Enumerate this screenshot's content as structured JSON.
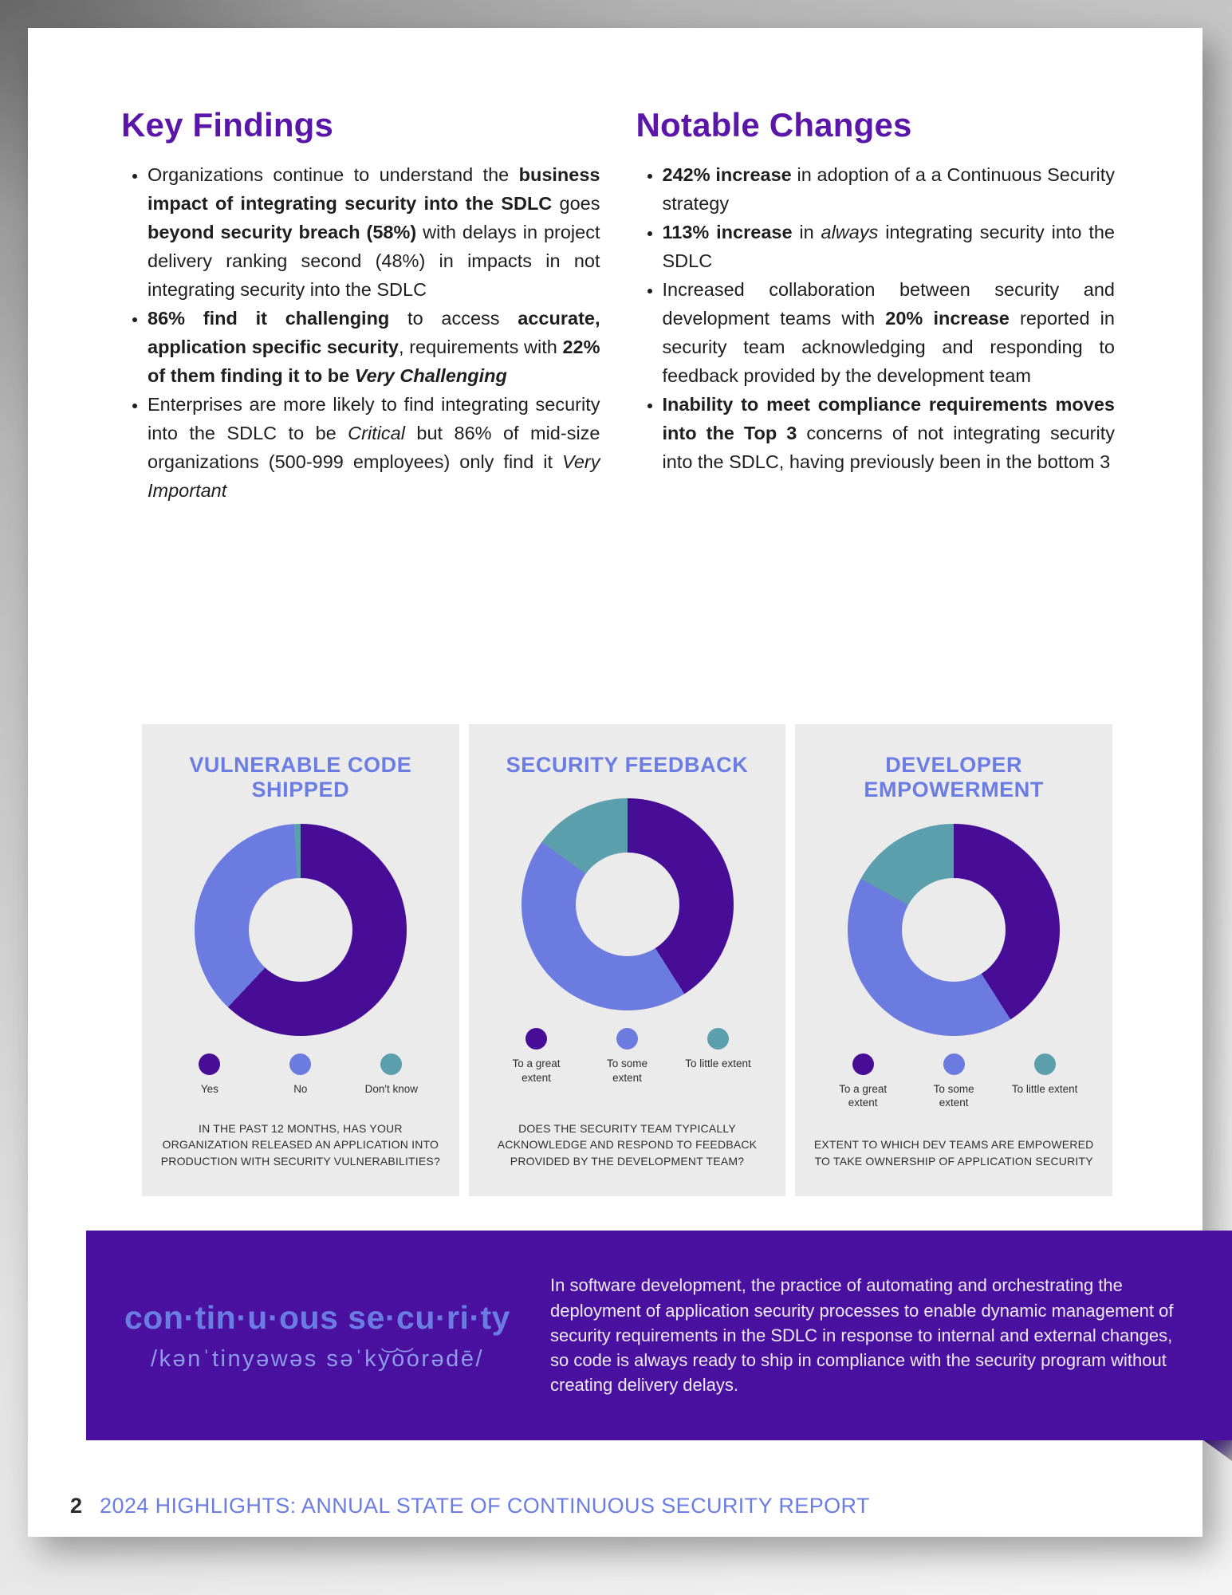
{
  "theme": {
    "heading_purple": "#5A16A8",
    "periwinkle": "#6B7DE2",
    "deep_purple": "#470D97",
    "teal": "#5B9FAC",
    "banner_purple": "#4A11A0",
    "card_bg": "#ECEBEC",
    "body_text": "#1E1E1E"
  },
  "key_findings": {
    "title": "Key Findings",
    "bullets": [
      [
        {
          "t": "Organizations continue to understand the "
        },
        {
          "t": "business impact of integrating security into the SDLC",
          "b": 1
        },
        {
          "t": " goes "
        },
        {
          "t": "beyond security breach (58%)",
          "b": 1
        },
        {
          "t": " with delays in project delivery ranking second (48%) in impacts in not integrating security into the SDLC"
        }
      ],
      [
        {
          "t": "86% find it challenging",
          "b": 1
        },
        {
          "t": " to access "
        },
        {
          "t": "accurate, application specific security",
          "b": 1
        },
        {
          "t": ", requirements with "
        },
        {
          "t": "22% of them finding it to be ",
          "b": 1
        },
        {
          "t": "Very Challenging",
          "b": 1,
          "i": 1
        }
      ],
      [
        {
          "t": "Enterprises are more likely to find integrating security into the SDLC to be "
        },
        {
          "t": "Critical",
          "i": 1
        },
        {
          "t": " but 86% of mid-size organizations (500-999 employees) only find it "
        },
        {
          "t": "Very Important",
          "i": 1
        }
      ]
    ]
  },
  "notable_changes": {
    "title": "Notable Changes",
    "bullets": [
      [
        {
          "t": "242% increase",
          "b": 1
        },
        {
          "t": " in adoption of a a Continuous Security strategy"
        }
      ],
      [
        {
          "t": "113% increase",
          "b": 1
        },
        {
          "t": " in "
        },
        {
          "t": "always",
          "i": 1
        },
        {
          "t": " integrating security into the SDLC"
        }
      ],
      [
        {
          "t": "Increased collaboration between security and development teams with "
        },
        {
          "t": "20% increase",
          "b": 1
        },
        {
          "t": " reported in security team acknowledging and responding to feedback provided by the development team"
        }
      ],
      [
        {
          "t": "Inability to meet compliance requirements moves into the Top 3",
          "b": 1
        },
        {
          "t": " concerns of not integrating security into the SDLC, having previously been in the bottom 3"
        }
      ]
    ]
  },
  "chart_data": [
    {
      "type": "pie",
      "subtype": "donut",
      "title": "VULNERABLE CODE SHIPPED",
      "labels": [
        "Yes",
        "No",
        "Don't know"
      ],
      "values": [
        62,
        37,
        1
      ],
      "colors": [
        "#470D97",
        "#6C7BE0",
        "#5B9FAC"
      ],
      "legend_position": "bottom",
      "caption": "IN THE PAST 12 MONTHS, HAS YOUR ORGANIZATION RELEASED AN APPLICATION INTO PRODUCTION WITH SECURITY VULNERABILITIES?"
    },
    {
      "type": "pie",
      "subtype": "donut",
      "title": "SECURITY FEEDBACK",
      "labels": [
        "To a great extent",
        "To some extent",
        "To little extent"
      ],
      "values": [
        41,
        44,
        15
      ],
      "colors": [
        "#470D97",
        "#6C7BE0",
        "#5B9FAC"
      ],
      "legend_position": "bottom",
      "caption": "DOES THE SECURITY TEAM TYPICALLY ACKNOWLEDGE AND RESPOND TO FEEDBACK PROVIDED BY THE DEVELOPMENT TEAM?"
    },
    {
      "type": "pie",
      "subtype": "donut",
      "title": "DEVELOPER EMPOWERMENT",
      "labels": [
        "To a great extent",
        "To some extent",
        "To little extent"
      ],
      "values": [
        41,
        42,
        17
      ],
      "colors": [
        "#470D97",
        "#6C7BE0",
        "#5B9FAC"
      ],
      "legend_position": "bottom",
      "caption": "EXTENT TO WHICH DEV TEAMS ARE EMPOWERED TO TAKE OWNERSHIP OF APPLICATION SECURITY"
    }
  ],
  "banner": {
    "term": "con·tin·u·ous se·cu·ri·ty",
    "phonetic": "/kənˈtinyəwəs səˈky͝o͝orədē/",
    "definition": "In software development, the practice of automating and orchestrating the deployment of application security processes to enable dynamic management of security requirements in the SDLC in response to internal and external changes, so code is always ready to ship in compliance with the security program without creating delivery delays."
  },
  "footer": {
    "page_number": "2",
    "title": "2024 HIGHLIGHTS: ANNUAL STATE OF CONTINUOUS SECURITY REPORT"
  }
}
